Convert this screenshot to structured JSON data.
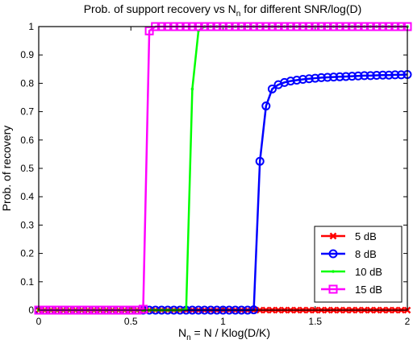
{
  "chart_data": {
    "type": "line",
    "title_main": "Prob. of support recovery vs N",
    "title_sub": "n",
    "title_tail": " for different SNR/log(D)",
    "xlabel_main": "N",
    "xlabel_sub": "n",
    "xlabel_tail": " = N / Klog(D/K)",
    "ylabel": "Prob. of recovery",
    "xlim": [
      0,
      2
    ],
    "ylim": [
      0,
      1
    ],
    "xticks": [
      0,
      0.5,
      1,
      1.5,
      2
    ],
    "xtick_labels": [
      "0",
      "0.5",
      "1",
      "1.5",
      "2"
    ],
    "yticks": [
      0,
      0.1,
      0.2,
      0.3,
      0.4,
      0.5,
      0.6,
      0.7,
      0.8,
      0.9,
      1
    ],
    "ytick_labels": [
      "0",
      "0.1",
      "0.2",
      "0.3",
      "0.4",
      "0.5",
      "0.6",
      "0.7",
      "0.8",
      "0.9",
      "1"
    ],
    "grid": false,
    "legend_position": "bottom-right",
    "x": [
      0,
      0.0333,
      0.0667,
      0.1,
      0.1333,
      0.1667,
      0.2,
      0.2333,
      0.2667,
      0.3,
      0.3333,
      0.3667,
      0.4,
      0.4333,
      0.4667,
      0.5,
      0.5333,
      0.5667,
      0.6,
      0.6333,
      0.6667,
      0.7,
      0.7333,
      0.7667,
      0.8,
      0.8333,
      0.8667,
      0.9,
      0.9333,
      0.9667,
      1.0,
      1.0333,
      1.0667,
      1.1,
      1.1333,
      1.1667,
      1.2,
      1.2333,
      1.2667,
      1.3,
      1.3333,
      1.3667,
      1.4,
      1.4333,
      1.4667,
      1.5,
      1.5333,
      1.5667,
      1.6,
      1.6333,
      1.6667,
      1.7,
      1.7333,
      1.7667,
      1.8,
      1.8333,
      1.8667,
      1.9,
      1.9333,
      1.9667,
      2.0
    ],
    "series": [
      {
        "name": "5 dB",
        "color": "#ff0000",
        "marker": "x",
        "values": [
          0,
          0,
          0,
          0,
          0,
          0,
          0,
          0,
          0,
          0,
          0,
          0,
          0,
          0,
          0,
          0,
          0,
          0,
          0,
          0,
          0,
          0,
          0,
          0,
          0,
          0,
          0,
          0,
          0,
          0,
          0,
          0,
          0,
          0,
          0,
          0,
          0,
          0,
          0,
          0,
          0,
          0,
          0,
          0,
          0,
          0,
          0,
          0,
          0,
          0,
          0,
          0,
          0,
          0,
          0,
          0,
          0,
          0,
          0,
          0,
          0
        ]
      },
      {
        "name": "8 dB",
        "color": "#0000ff",
        "marker": "o",
        "values": [
          0,
          0,
          0,
          0,
          0,
          0,
          0,
          0,
          0,
          0,
          0,
          0,
          0,
          0,
          0,
          0,
          0,
          0,
          0,
          0,
          0,
          0,
          0,
          0,
          0,
          0,
          0,
          0,
          0,
          0,
          0,
          0,
          0,
          0,
          0,
          0.001,
          0.525,
          0.72,
          0.78,
          0.795,
          0.803,
          0.808,
          0.811,
          0.814,
          0.816,
          0.818,
          0.82,
          0.821,
          0.822,
          0.823,
          0.824,
          0.825,
          0.826,
          0.827,
          0.827,
          0.828,
          0.829,
          0.829,
          0.83,
          0.83,
          0.831
        ]
      },
      {
        "name": "10 dB",
        "color": "#00ff00",
        "marker": ".",
        "values": [
          0,
          0,
          0,
          0,
          0,
          0,
          0,
          0,
          0,
          0,
          0,
          0,
          0,
          0,
          0,
          0,
          0,
          0,
          0,
          0,
          0,
          0,
          0,
          0,
          0.003,
          0.78,
          0.985,
          1,
          1,
          1,
          1,
          1,
          1,
          1,
          1,
          1,
          1,
          1,
          1,
          1,
          1,
          1,
          1,
          1,
          1,
          1,
          1,
          1,
          1,
          1,
          1,
          1,
          1,
          1,
          1,
          1,
          1,
          1,
          1,
          1,
          1
        ]
      },
      {
        "name": "15 dB",
        "color": "#ff00ff",
        "marker": "s",
        "values": [
          0,
          0,
          0,
          0,
          0,
          0,
          0,
          0,
          0,
          0,
          0,
          0,
          0,
          0,
          0,
          0,
          0,
          0.003,
          0.985,
          1,
          1,
          1,
          1,
          1,
          1,
          1,
          1,
          1,
          1,
          1,
          1,
          1,
          1,
          1,
          1,
          1,
          1,
          1,
          1,
          1,
          1,
          1,
          1,
          1,
          1,
          1,
          1,
          1,
          1,
          1,
          1,
          1,
          1,
          1,
          1,
          1,
          1,
          1,
          1,
          1,
          1
        ]
      }
    ]
  }
}
